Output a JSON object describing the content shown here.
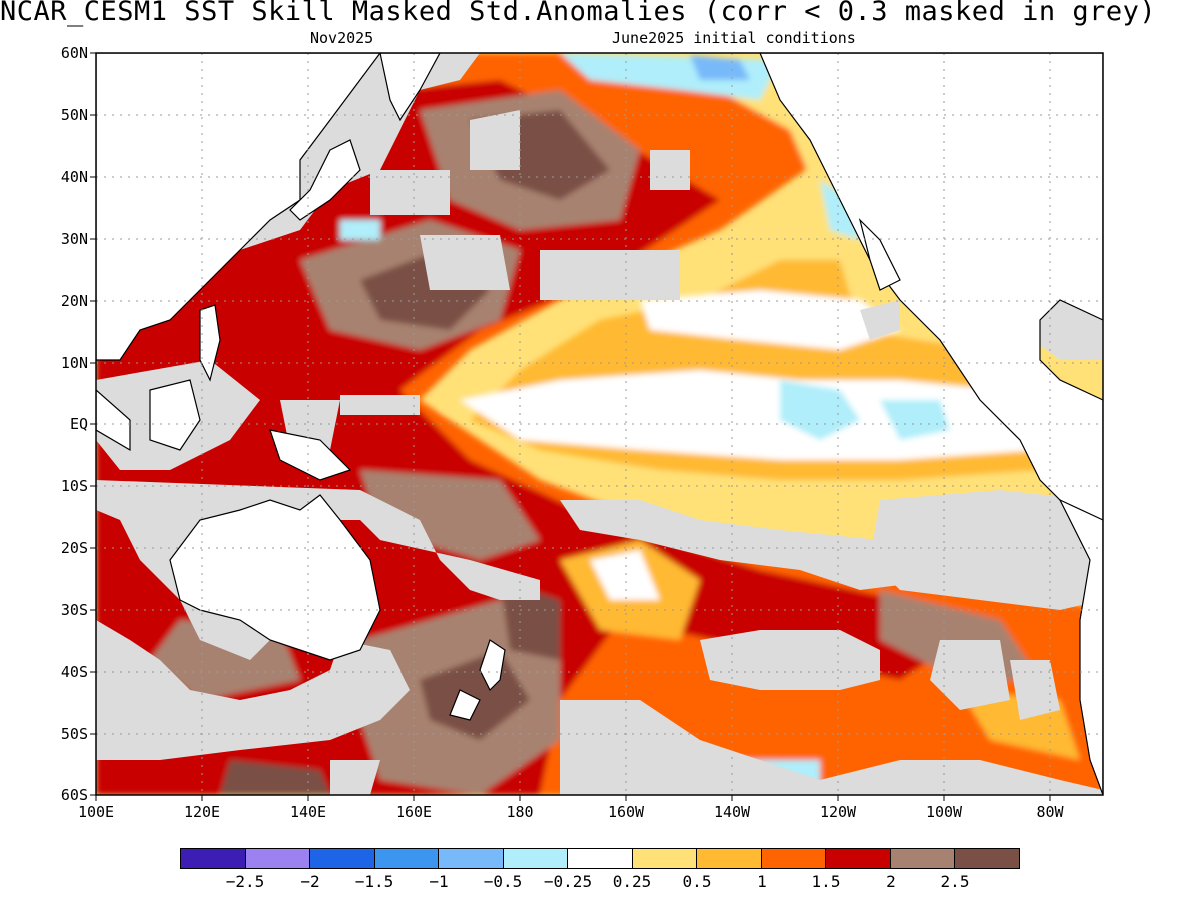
{
  "header": {
    "title": "NCAR_CESM1   SST Skill Masked Std.Anomalies (corr < 0.3 masked in grey)",
    "subtitle_left": "Nov2025",
    "subtitle_right": "June2025 initial conditions"
  },
  "map": {
    "type": "sst-anomaly-map",
    "region": "Pacific Ocean",
    "lon_range": [
      100,
      290
    ],
    "lat_range": [
      -60,
      60
    ],
    "lat_labels": [
      "60N",
      "50N",
      "40N",
      "30N",
      "20N",
      "10N",
      "EQ",
      "10S",
      "20S",
      "30S",
      "40S",
      "50S",
      "60S"
    ],
    "lon_labels": [
      "100E",
      "120E",
      "140E",
      "160E",
      "180",
      "160W",
      "140W",
      "120W",
      "100W",
      "80W"
    ],
    "land_color": "#ffffff",
    "mask_color": "#dcdcdc",
    "mask_note": "corr < 0.3 masked in grey"
  },
  "colorbar": {
    "colors": [
      "#3c1eb4",
      "#9b82f0",
      "#1e64e6",
      "#3c96f0",
      "#78b9fa",
      "#afeefa",
      "#ffffff",
      "#ffe178",
      "#ffb932",
      "#ff6400",
      "#c80000",
      "#a88270",
      "#7a4f45"
    ],
    "labels": [
      "−2.5",
      "−2",
      "−1.5",
      "−1",
      "−0.5",
      "−0.25",
      "0.25",
      "0.5",
      "1",
      "1.5",
      "2",
      "2.5"
    ]
  }
}
